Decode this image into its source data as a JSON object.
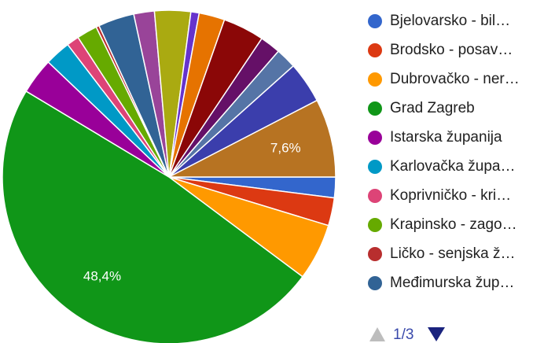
{
  "chart_data": {
    "type": "pie",
    "categories": [
      "Bjelovarsko - bil…",
      "Brodsko - posav…",
      "Dubrovačko - ner…",
      "Grad Zagreb",
      "Istarska županija",
      "Karlovačka župa…",
      "Koprivničko - kri…",
      "Krapinsko - zago…",
      "Ličko - senjska ž…",
      "Međimurska žup…",
      null,
      null,
      null,
      null,
      null,
      null,
      null,
      null,
      null
    ],
    "values": [
      2,
      2.7,
      5.5,
      48.4,
      3.5,
      2.5,
      1.2,
      2,
      0.3,
      3.5,
      2,
      3.5,
      0.8,
      2.5,
      4,
      2,
      2,
      4,
      7.6
    ],
    "value_labels": [
      null,
      null,
      null,
      "48,4%",
      null,
      null,
      null,
      null,
      null,
      null,
      null,
      null,
      null,
      null,
      null,
      null,
      null,
      null,
      "7,6%"
    ],
    "colors": [
      "#3366cc",
      "#dc3912",
      "#ff9900",
      "#109618",
      "#990099",
      "#0099c6",
      "#dd4477",
      "#66aa00",
      "#b82e2e",
      "#316395",
      "#994499",
      "#aaaa11",
      "#6633cc",
      "#e67300",
      "#8b0707",
      "#651067",
      "#5574a6",
      "#3b3eac",
      "#b77322"
    ],
    "legend_count": 10,
    "pager": "1/3"
  }
}
